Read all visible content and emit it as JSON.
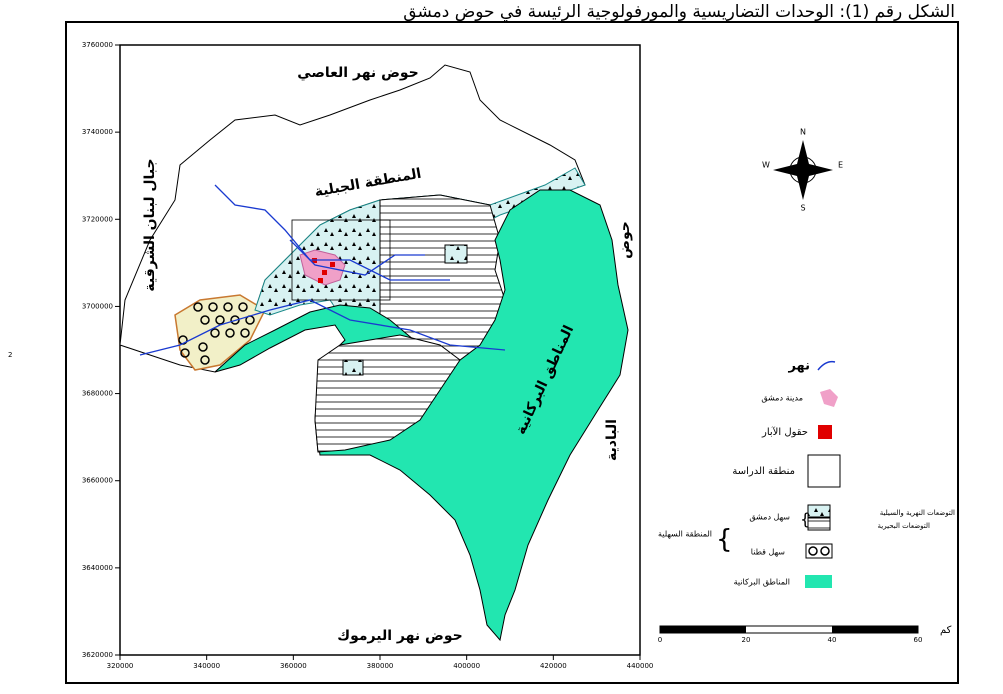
{
  "header": {
    "title": "الشكل رقم (1): الوحدات التضاريسية والمورفولوجية الرئيسة في حوض دمشق"
  },
  "page_number": "2",
  "axes": {
    "x_ticks": [
      320000,
      340000,
      360000,
      380000,
      400000,
      420000,
      440000
    ],
    "y_ticks": [
      3760000,
      3740000,
      3720000,
      3700000,
      3680000,
      3660000,
      3640000,
      3620000
    ]
  },
  "map_labels": {
    "orontes_basin": "حوض نهر العاصي",
    "anti_lebanon": "جبال لبنان الشرقية",
    "mountain_zone": "المنطقة الجبلية",
    "yarmouk_basin": "حوض نهر اليرموك",
    "volcanic_zone": "المناطق البركانية",
    "basin": "حوض",
    "badia": "البادية"
  },
  "compass": {
    "north": "N",
    "south": "S",
    "east": "E",
    "west": "W"
  },
  "legend": {
    "river": "نهر",
    "damascus": "مدينة دمشق",
    "wells": "حقول الآبار",
    "study_area": "منطقة الدراسة",
    "fluvial_deposits": "التوضعات النهرية والسيلية",
    "lacustrine_deposits": "التوضعات البحيرية",
    "damascus_plain": "سهل دمشق",
    "qatana_plain": "سهل قطنا",
    "plain_zone": "المنطقة السهلية",
    "volcanic": "المناطق البركانية"
  },
  "scale": {
    "unit": "كم",
    "ticks": [
      0,
      20,
      40,
      60
    ]
  }
}
